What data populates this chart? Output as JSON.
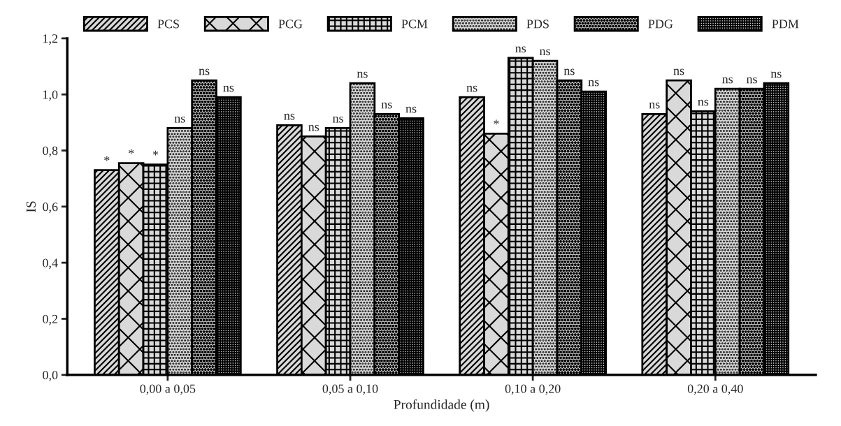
{
  "chart_data": {
    "type": "bar",
    "xlabel": "Profundidade (m)",
    "ylabel": "IS",
    "categories": [
      "0,00 a 0,05",
      "0,05 a 0,10",
      "0,10 a 0,20",
      "0,20 a 0,40"
    ],
    "ylim": [
      0,
      1.2
    ],
    "yticks": [
      {
        "value": 0,
        "label": "0,0"
      },
      {
        "value": 0.2,
        "label": "0,2"
      },
      {
        "value": 0.4,
        "label": "0,4"
      },
      {
        "value": 0.6,
        "label": "0,6"
      },
      {
        "value": 0.8,
        "label": "0,8"
      },
      {
        "value": 1.0,
        "label": "1,0"
      },
      {
        "value": 1.2,
        "label": "1,2"
      }
    ],
    "grid": false,
    "legend": "top",
    "series": [
      {
        "name": "PCS",
        "values": [
          0.73,
          0.89,
          0.99,
          0.93
        ],
        "value_labels": [
          "*",
          "ns",
          "ns",
          "ns"
        ]
      },
      {
        "name": "PCG",
        "values": [
          0.755,
          0.85,
          0.86,
          1.05
        ],
        "value_labels": [
          "*",
          "ns",
          "*",
          "ns"
        ]
      },
      {
        "name": "PCM",
        "values": [
          0.75,
          0.88,
          1.13,
          0.94
        ],
        "value_labels": [
          "*",
          "ns",
          "ns",
          "ns"
        ]
      },
      {
        "name": "PDS",
        "values": [
          0.88,
          1.04,
          1.12,
          1.02
        ],
        "value_labels": [
          "ns",
          "ns",
          "ns",
          "ns"
        ]
      },
      {
        "name": "PDG",
        "values": [
          1.05,
          0.93,
          1.05,
          1.02
        ],
        "value_labels": [
          "ns",
          "ns",
          "ns",
          "ns"
        ]
      },
      {
        "name": "PDM",
        "values": [
          0.99,
          0.915,
          1.01,
          1.04
        ],
        "value_labels": [
          "ns",
          "ns",
          "ns",
          "ns"
        ]
      }
    ]
  }
}
